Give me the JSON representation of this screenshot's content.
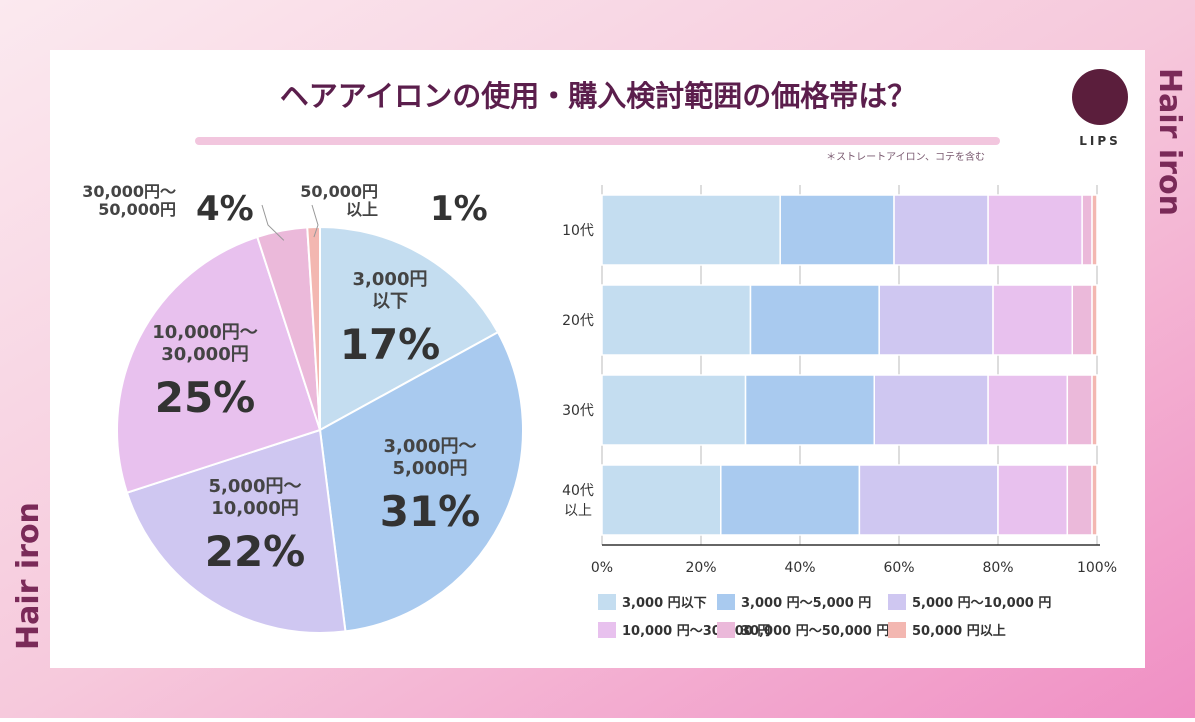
{
  "title": "ヘアアイロンの使用・購入検討範囲の価格帯は？",
  "note": "＊ストレートアイロン、コテを含む",
  "brand": "LIPS",
  "side_text": "Hair iron",
  "chart_data": [
    {
      "type": "pie",
      "labels": [
        [
          "3,000円",
          "以下"
        ],
        [
          "3,000円～",
          "5,000円"
        ],
        [
          "5,000円～",
          "10,000円"
        ],
        [
          "10,000円～",
          "30,000円"
        ],
        [
          "30,000円～",
          "50,000円"
        ],
        [
          "50,000円",
          "以上"
        ]
      ],
      "values": [
        17,
        31,
        22,
        25,
        4,
        1
      ],
      "value_labels": [
        "17%",
        "31%",
        "22%",
        "25%",
        "4%",
        "1%"
      ],
      "colors": [
        "#c4ddf0",
        "#a9caef",
        "#cfc7f1",
        "#e8c1ee",
        "#ebb9da",
        "#f3b7b1"
      ]
    },
    {
      "type": "stacked_barh",
      "categories": [
        [
          "10代"
        ],
        [
          "20代"
        ],
        [
          "30代"
        ],
        [
          "40代",
          "以上"
        ]
      ],
      "series": [
        {
          "name": "3,000 円以下",
          "color": "#c4ddf0",
          "values": [
            36,
            30,
            29,
            24
          ]
        },
        {
          "name": "3,000 円～5,000 円",
          "color": "#a9caef",
          "values": [
            23,
            26,
            26,
            28
          ]
        },
        {
          "name": "5,000 円～10,000 円",
          "color": "#cfc7f1",
          "values": [
            19,
            23,
            23,
            28
          ]
        },
        {
          "name": "10,000 円～30,000 円",
          "color": "#e8c1ee",
          "values": [
            19,
            16,
            16,
            14
          ]
        },
        {
          "name": "30,000 円～50,000 円",
          "color": "#ebb9da",
          "values": [
            2,
            4,
            5,
            5
          ]
        },
        {
          "name": "50,000 円以上",
          "color": "#f3b7b1",
          "values": [
            1,
            1,
            1,
            1
          ]
        }
      ],
      "xlim": [
        0,
        100
      ],
      "xticks": [
        {
          "value": 0,
          "label": "0%"
        },
        {
          "value": 20,
          "label": "20%"
        },
        {
          "value": 40,
          "label": "40%"
        },
        {
          "value": 60,
          "label": "60%"
        },
        {
          "value": 80,
          "label": "80%"
        },
        {
          "value": 100,
          "label": "100%"
        }
      ],
      "grid": true
    }
  ]
}
